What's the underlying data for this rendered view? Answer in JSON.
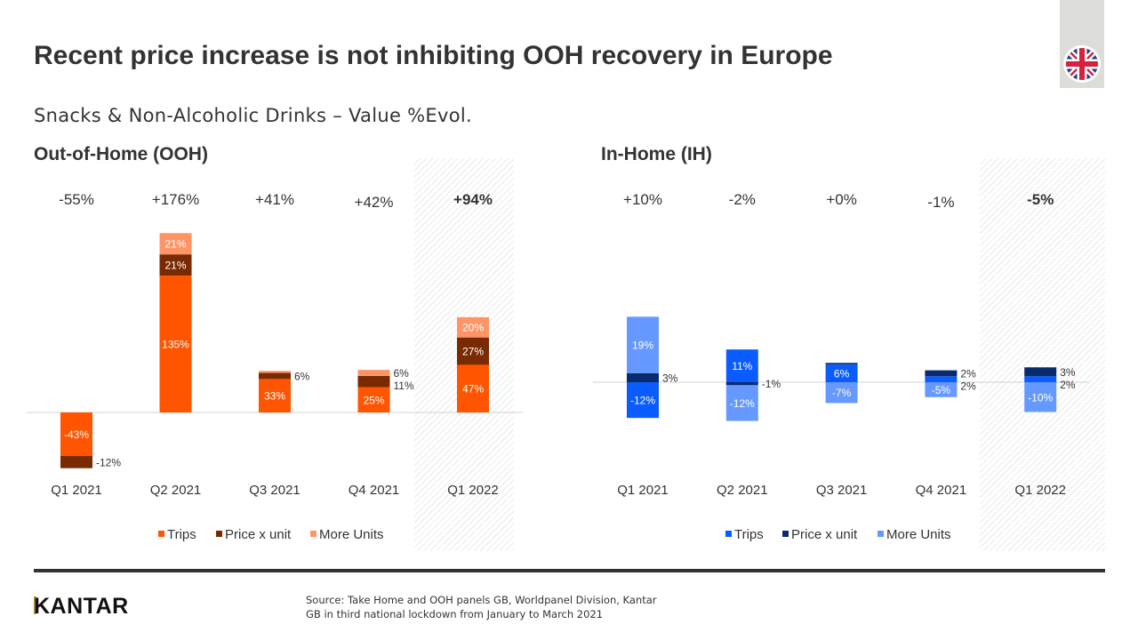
{
  "title": "Recent price increase is not inhibiting OOH recovery in Europe",
  "subtitle": "Snacks & Non-Alcoholic Drinks – Value %Evol.",
  "flag_icon": "uk-flag-icon",
  "footer": {
    "logo": "KANTAR",
    "source_line1": "Source: Take Home and OOH panels GB, Worldpanel Division,  Kantar",
    "source_line2": "GB in third national lockdown from January to March 2021"
  },
  "chart_data": [
    {
      "type": "bar",
      "stacked": true,
      "title": "Out-of-Home (OOH)",
      "categories": [
        "Q1 2021",
        "Q2 2021",
        "Q3 2021",
        "Q4 2021",
        "Q1 2022"
      ],
      "totals": [
        "-55%",
        "+176%",
        "+41%",
        "+42%",
        "+94%"
      ],
      "highlighted_category": "Q1 2022",
      "series": [
        {
          "name": "Trips",
          "color": "#ff5500",
          "values": [
            -43,
            135,
            33,
            25,
            47
          ],
          "labels": [
            "-43%",
            "135%",
            "33%",
            "25%",
            "47%"
          ]
        },
        {
          "name": "Price x unit",
          "color": "#7a2a00",
          "values": [
            -12,
            21,
            6,
            11,
            27
          ],
          "labels": [
            "-12%",
            "21%",
            "6%",
            "11%",
            "27%"
          ]
        },
        {
          "name": "More Units",
          "color": "#ff9466",
          "values": [
            0,
            21,
            2,
            6,
            20
          ],
          "labels": [
            null,
            "21%",
            null,
            "6%",
            "20%"
          ]
        }
      ],
      "legend": "bottom"
    },
    {
      "type": "bar",
      "stacked": true,
      "title": "In-Home (IH)",
      "categories": [
        "Q1 2021",
        "Q2 2021",
        "Q3 2021",
        "Q4 2021",
        "Q1 2022"
      ],
      "totals": [
        "+10%",
        "-2%",
        "+0%",
        "-1%",
        "-5%"
      ],
      "highlighted_category": "Q1 2022",
      "series": [
        {
          "name": "Trips",
          "color": "#0a5cff",
          "values": [
            -12,
            11,
            6,
            2,
            2
          ],
          "labels": [
            "-12%",
            "11%",
            "6%",
            "2%",
            "2%"
          ]
        },
        {
          "name": "Price x unit",
          "color": "#0a2a6e",
          "values": [
            3,
            -1,
            0.5,
            2,
            3
          ],
          "labels": [
            "3%",
            "-1%",
            null,
            "2%",
            "3%"
          ]
        },
        {
          "name": "More Units",
          "color": "#6699ff",
          "values": [
            19,
            -12,
            -7,
            -5,
            -10
          ],
          "labels": [
            "19%",
            "-12%",
            "-7%",
            "-5%",
            "-10%"
          ]
        }
      ],
      "legend": "bottom"
    }
  ]
}
